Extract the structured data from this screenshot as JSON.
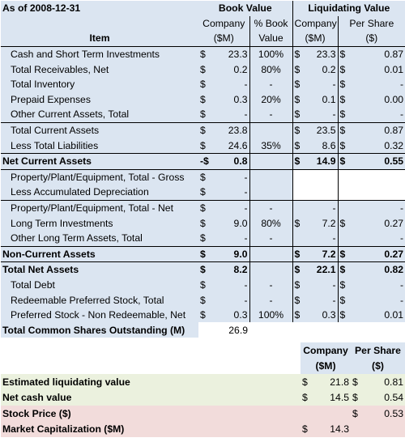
{
  "header": {
    "as_of": "As of 2008-12-31",
    "book_value": "Book Value",
    "liquidating_value": "Liquidating Value",
    "company": "Company",
    "pct_book": "% Book",
    "sm": "($M)",
    "value": "Value",
    "per_share": "Per Share",
    "dollar_unit": "($)",
    "item": "Item"
  },
  "rows": [
    {
      "label": "Cash and Short Term Investments",
      "bv_sign": "$",
      "bv": "23.3",
      "pct": "100%",
      "lv_sign": "$",
      "lv": "23.3",
      "ps_sign": "$",
      "ps": "0.87"
    },
    {
      "label": "Total Receivables, Net",
      "bv_sign": "$",
      "bv": "0.2",
      "pct": "80%",
      "lv_sign": "$",
      "lv": "0.2",
      "ps_sign": "$",
      "ps": "0.01"
    },
    {
      "label": "Total Inventory",
      "bv_sign": "$",
      "bv": "-",
      "pct": "-",
      "lv_sign": "$",
      "lv": "-",
      "ps_sign": "$",
      "ps": "-"
    },
    {
      "label": "Prepaid Expenses",
      "bv_sign": "$",
      "bv": "0.3",
      "pct": "20%",
      "lv_sign": "$",
      "lv": "0.1",
      "ps_sign": "$",
      "ps": "0.00"
    },
    {
      "label": "Other Current Assets, Total",
      "bv_sign": "$",
      "bv": "-",
      "pct": "-",
      "lv_sign": "$",
      "lv": "-",
      "ps_sign": "$",
      "ps": "-"
    },
    {
      "label": "Total Current Assets",
      "bv_sign": "$",
      "bv": "23.8",
      "pct": "",
      "lv_sign": "$",
      "lv": "23.5",
      "ps_sign": "$",
      "ps": "0.87"
    },
    {
      "label": "Less Total Liabilities",
      "bv_sign": "$",
      "bv": "24.6",
      "pct": "35%",
      "lv_sign": "$",
      "lv": "8.6",
      "ps_sign": "$",
      "ps": "0.32"
    },
    {
      "label": "Net Current Assets",
      "bv_sign": "-$",
      "bv": "0.8",
      "pct": "",
      "lv_sign": "$",
      "lv": "14.9",
      "ps_sign": "$",
      "ps": "0.55"
    },
    {
      "label": "Property/Plant/Equipment, Total - Gross",
      "bv_sign": "$",
      "bv": "-",
      "pct": "",
      "lv_sign": "",
      "lv": "",
      "ps_sign": "",
      "ps": ""
    },
    {
      "label": "Less Accumulated Depreciation",
      "bv_sign": "$",
      "bv": "-",
      "pct": "",
      "lv_sign": "",
      "lv": "",
      "ps_sign": "",
      "ps": ""
    },
    {
      "label": "Property/Plant/Equipment, Total - Net",
      "bv_sign": "$",
      "bv": "-",
      "pct": "-",
      "lv_sign": "",
      "lv": "-",
      "ps_sign": "",
      "ps": "-"
    },
    {
      "label": "Long Term Investments",
      "bv_sign": "$",
      "bv": "9.0",
      "pct": "80%",
      "lv_sign": "$",
      "lv": "7.2",
      "ps_sign": "$",
      "ps": "0.27"
    },
    {
      "label": "Other Long Term Assets, Total",
      "bv_sign": "$",
      "bv": "-",
      "pct": "-",
      "lv_sign": "",
      "lv": "-",
      "ps_sign": "",
      "ps": "-"
    },
    {
      "label": "Non-Current Assets",
      "bv_sign": "$",
      "bv": "9.0",
      "pct": "",
      "lv_sign": "$",
      "lv": "7.2",
      "ps_sign": "$",
      "ps": "0.27"
    },
    {
      "label": "Total Net Assets",
      "bv_sign": "$",
      "bv": "8.2",
      "pct": "",
      "lv_sign": "$",
      "lv": "22.1",
      "ps_sign": "$",
      "ps": "0.82"
    },
    {
      "label": "Total Debt",
      "bv_sign": "$",
      "bv": "-",
      "pct": "-",
      "lv_sign": "$",
      "lv": "-",
      "ps_sign": "$",
      "ps": "-"
    },
    {
      "label": "Redeemable Preferred Stock, Total",
      "bv_sign": "$",
      "bv": "-",
      "pct": "-",
      "lv_sign": "$",
      "lv": "-",
      "ps_sign": "$",
      "ps": "-"
    },
    {
      "label": "Preferred Stock - Non Redeemable, Net",
      "bv_sign": "$",
      "bv": "0.3",
      "pct": "100%",
      "lv_sign": "$",
      "lv": "0.3",
      "ps_sign": "$",
      "ps": "0.01"
    }
  ],
  "shares": {
    "label": "Total Common Shares Outstanding (M)",
    "value": "26.9"
  },
  "summary": {
    "company": "Company",
    "per_share": "Per Share",
    "sm": "($M)",
    "dollar_unit": "($)",
    "rows": [
      {
        "label": "Estimated liquidating value",
        "co_sign": "$",
        "co": "21.8",
        "ps_sign": "$",
        "ps": "0.81"
      },
      {
        "label": "Net cash value",
        "co_sign": "$",
        "co": "14.5",
        "ps_sign": "$",
        "ps": "0.54"
      },
      {
        "label": "Stock Price ($)",
        "co_sign": "",
        "co": "",
        "ps_sign": "$",
        "ps": "0.53"
      },
      {
        "label": "Market Capitalization ($M)",
        "co_sign": "$",
        "co": "14.3",
        "ps_sign": "",
        "ps": ""
      }
    ]
  }
}
